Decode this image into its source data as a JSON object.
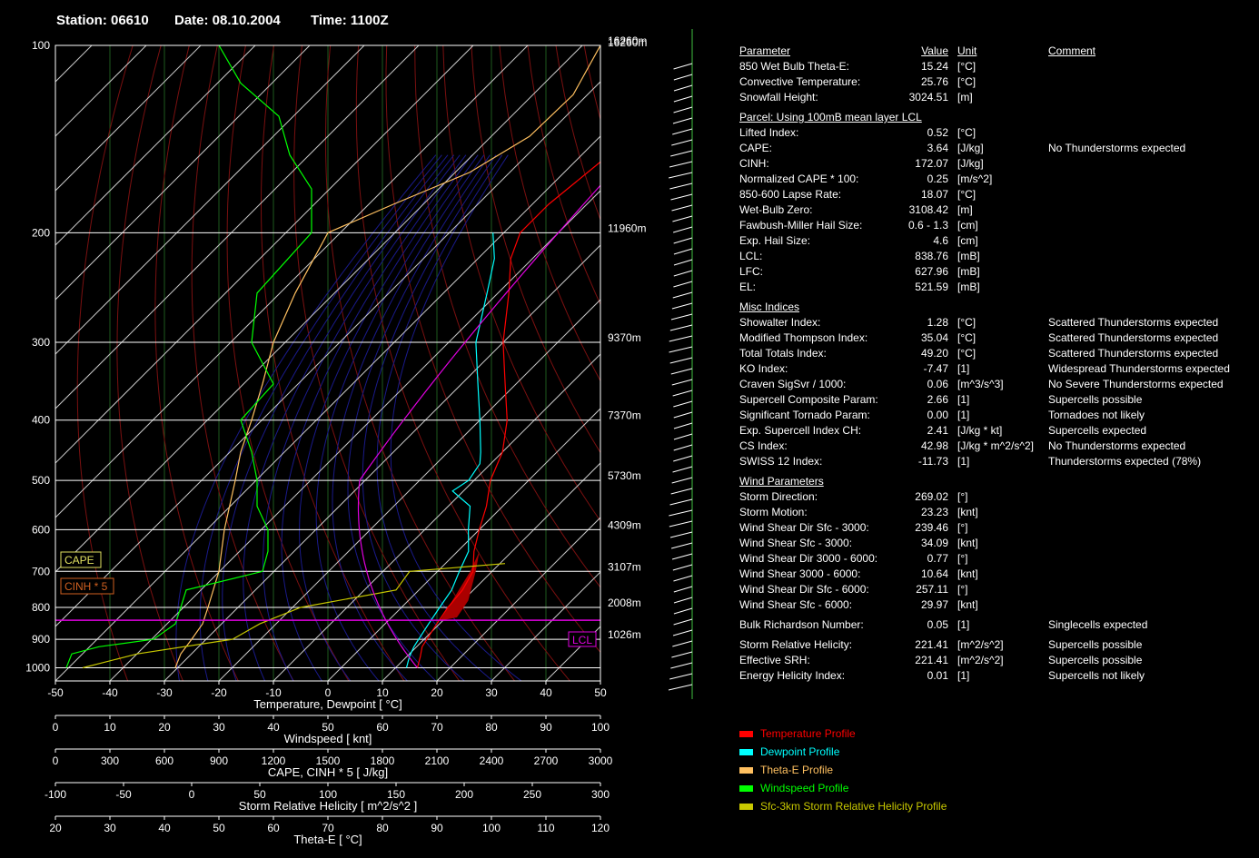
{
  "header": {
    "station": "Station: 06610",
    "date": "Date: 08.10.2004",
    "time": "Time: 1100Z"
  },
  "chart_data": {
    "type": "skew-t",
    "xlabel": "Temperature, Dewpoint  [ °C]",
    "x_ticks": [
      "-50",
      "-40",
      "-30",
      "-20",
      "-10",
      "0",
      "10",
      "20",
      "30",
      "40",
      "50"
    ],
    "y_ticks": [
      "100",
      "200",
      "300",
      "400",
      "500",
      "600",
      "700",
      "800",
      "900",
      "1000"
    ],
    "heights": [
      {
        "p": 100,
        "label": "16260m"
      },
      {
        "p": 200,
        "label": "11960m"
      },
      {
        "p": 300,
        "label": "9370m"
      },
      {
        "p": 400,
        "label": "7370m"
      },
      {
        "p": 500,
        "label": "5730m"
      },
      {
        "p": 600,
        "label": "4309m"
      },
      {
        "p": 700,
        "label": "3107m"
      },
      {
        "p": 800,
        "label": "2008m"
      },
      {
        "p": 900,
        "label": "1026m"
      }
    ],
    "lcl_label": "LCL",
    "cape_label": "CAPE",
    "cinh_label": "CINH * 5",
    "series": [
      {
        "name": "Temperature Profile",
        "color": "#ff0000",
        "points": [
          [
            1000,
            14
          ],
          [
            960,
            12.5
          ],
          [
            925,
            11
          ],
          [
            900,
            10.5
          ],
          [
            850,
            9.5
          ],
          [
            800,
            8.5
          ],
          [
            750,
            8
          ],
          [
            700,
            6.5
          ],
          [
            650,
            3
          ],
          [
            600,
            0
          ],
          [
            550,
            -3
          ],
          [
            500,
            -7
          ],
          [
            450,
            -10
          ],
          [
            400,
            -15
          ],
          [
            350,
            -22
          ],
          [
            300,
            -30
          ],
          [
            250,
            -38
          ],
          [
            220,
            -44
          ],
          [
            200,
            -47
          ],
          [
            180,
            -47
          ],
          [
            150,
            -45
          ],
          [
            130,
            -43
          ],
          [
            110,
            -41
          ],
          [
            100,
            -40
          ]
        ]
      },
      {
        "name": "Dewpoint Profile",
        "color": "#00ffff",
        "points": [
          [
            1000,
            12
          ],
          [
            960,
            10.5
          ],
          [
            925,
            9.5
          ],
          [
            900,
            9
          ],
          [
            850,
            8
          ],
          [
            800,
            7
          ],
          [
            750,
            6
          ],
          [
            700,
            4
          ],
          [
            650,
            2
          ],
          [
            600,
            -2
          ],
          [
            550,
            -6
          ],
          [
            520,
            -12
          ],
          [
            500,
            -11
          ],
          [
            470,
            -12
          ],
          [
            450,
            -14
          ],
          [
            400,
            -20
          ],
          [
            350,
            -27
          ],
          [
            300,
            -35
          ],
          [
            250,
            -42
          ],
          [
            220,
            -47
          ],
          [
            200,
            -52
          ]
        ]
      },
      {
        "name": "Theta-E Profile",
        "color": "#ffc060",
        "points": [
          [
            1000,
            42
          ],
          [
            950,
            43
          ],
          [
            900,
            45
          ],
          [
            850,
            47
          ],
          [
            800,
            48
          ],
          [
            700,
            50
          ],
          [
            600,
            51
          ],
          [
            500,
            53
          ],
          [
            450,
            54
          ],
          [
            400,
            56
          ],
          [
            350,
            58
          ],
          [
            300,
            60
          ],
          [
            250,
            64
          ],
          [
            200,
            70
          ],
          [
            180,
            82
          ],
          [
            160,
            96
          ],
          [
            140,
            107
          ],
          [
            120,
            115
          ],
          [
            100,
            120
          ]
        ]
      },
      {
        "name": "Windspeed Profile",
        "color": "#00ff00",
        "points": [
          [
            1000,
            2
          ],
          [
            950,
            3
          ],
          [
            925,
            8
          ],
          [
            900,
            18
          ],
          [
            850,
            22
          ],
          [
            800,
            23
          ],
          [
            750,
            24
          ],
          [
            700,
            38
          ],
          [
            650,
            39
          ],
          [
            600,
            39
          ],
          [
            550,
            37
          ],
          [
            500,
            37
          ],
          [
            450,
            36
          ],
          [
            400,
            34
          ],
          [
            350,
            40
          ],
          [
            300,
            36
          ],
          [
            250,
            37
          ],
          [
            200,
            47
          ],
          [
            170,
            47
          ],
          [
            150,
            43
          ],
          [
            130,
            41
          ],
          [
            115,
            34
          ],
          [
            100,
            30
          ]
        ]
      },
      {
        "name": "Sfc-3km Storm Relative Helicity Profile",
        "color": "#c8c800",
        "points": [
          [
            1000,
            -80
          ],
          [
            950,
            -40
          ],
          [
            900,
            30
          ],
          [
            850,
            50
          ],
          [
            800,
            80
          ],
          [
            750,
            150
          ],
          [
            700,
            160
          ],
          [
            680,
            230
          ]
        ]
      }
    ],
    "wind_barbs": "right column",
    "windspeed_axis": {
      "label": "Windspeed  [ knt]",
      "ticks": [
        "0",
        "10",
        "20",
        "30",
        "40",
        "50",
        "60",
        "70",
        "80",
        "90",
        "100"
      ]
    },
    "cape_axis": {
      "label": "CAPE, CINH * 5  [ J/kg]",
      "ticks": [
        "0",
        "300",
        "600",
        "900",
        "1200",
        "1500",
        "1800",
        "2100",
        "2400",
        "2700",
        "3000"
      ]
    },
    "srh_axis": {
      "label": "Storm Relative Helicity  [ m^2/s^2 ]",
      "ticks": [
        "-100",
        "-50",
        "0",
        "50",
        "100",
        "150",
        "200",
        "250",
        "300"
      ]
    },
    "thetae_axis": {
      "label": "Theta-E  [ °C]",
      "ticks": [
        "20",
        "30",
        "40",
        "50",
        "60",
        "70",
        "80",
        "90",
        "100",
        "110",
        "120"
      ]
    }
  },
  "table": {
    "headers": {
      "param": "Parameter",
      "value": "Value",
      "unit": "Unit",
      "comment": "Comment"
    },
    "groups": [
      {
        "title": "",
        "rows": [
          [
            "850 Wet Bulb Theta-E:",
            "15.24",
            "[°C]",
            ""
          ],
          [
            "Convective Temperature:",
            "25.76",
            "[°C]",
            ""
          ],
          [
            "Snowfall Height:",
            "3024.51",
            "[m]",
            ""
          ]
        ]
      },
      {
        "title": "Parcel: Using 100mB mean layer LCL",
        "rows": [
          [
            "Lifted Index:",
            "0.52",
            "[°C]",
            ""
          ],
          [
            "CAPE:",
            "3.64",
            "[J/kg]",
            "No Thunderstorms expected"
          ],
          [
            "CINH:",
            "172.07",
            "[J/kg]",
            ""
          ],
          [
            "Normalized CAPE * 100:",
            "0.25",
            "[m/s^2]",
            ""
          ],
          [
            "850-600 Lapse Rate:",
            "18.07",
            "[°C]",
            ""
          ],
          [
            "Wet-Bulb Zero:",
            "3108.42",
            "[m]",
            ""
          ],
          [
            "Fawbush-Miller Hail Size:",
            "0.6 - 1.3",
            "[cm]",
            ""
          ],
          [
            "Exp. Hail Size:",
            "4.6",
            "[cm]",
            ""
          ],
          [
            "LCL:",
            "838.76",
            "[mB]",
            ""
          ],
          [
            "LFC:",
            "627.96",
            "[mB]",
            ""
          ],
          [
            "EL:",
            "521.59",
            "[mB]",
            ""
          ]
        ]
      },
      {
        "title": "Misc Indices",
        "rows": [
          [
            "Showalter Index:",
            "1.28",
            "[°C]",
            "Scattered Thunderstorms expected"
          ],
          [
            "Modified Thompson Index:",
            "35.04",
            "[°C]",
            "Scattered Thunderstorms expected"
          ],
          [
            "Total Totals Index:",
            "49.20",
            "[°C]",
            "Scattered Thunderstorms expected"
          ],
          [
            "KO Index:",
            "-7.47",
            "[1]",
            "Widespread Thunderstorms expected"
          ],
          [
            "Craven SigSvr / 1000:",
            "0.06",
            "[m^3/s^3]",
            "No Severe Thunderstorms expected"
          ],
          [
            "Supercell Composite Param:",
            "2.66",
            "[1]",
            "Supercells possible"
          ],
          [
            "Significant Tornado Param:",
            "0.00",
            "[1]",
            "Tornadoes not likely"
          ],
          [
            "Exp. Supercell Index CH:",
            "2.41",
            "[J/kg * kt]",
            "Supercells expected"
          ],
          [
            "CS Index:",
            "42.98",
            "[J/kg * m^2/s^2]",
            "No Thunderstorms expected"
          ],
          [
            "SWISS 12 Index:",
            "-11.73",
            "[1]",
            "Thunderstorms expected (78%)"
          ]
        ]
      },
      {
        "title": "Wind Parameters",
        "rows": [
          [
            "Storm Direction:",
            "269.02",
            "[°]",
            ""
          ],
          [
            "Storm Motion:",
            "23.23",
            "[knt]",
            ""
          ],
          [
            "Wind Shear Dir Sfc - 3000:",
            "239.46",
            "[°]",
            ""
          ],
          [
            "Wind Shear Sfc - 3000:",
            "34.09",
            "[knt]",
            ""
          ],
          [
            "Wind Shear Dir 3000 - 6000:",
            "0.77",
            "[°]",
            ""
          ],
          [
            "Wind Shear 3000 - 6000:",
            "10.64",
            "[knt]",
            ""
          ],
          [
            "Wind Shear Dir Sfc - 6000:",
            "257.11",
            "[°]",
            ""
          ],
          [
            "Wind Shear Sfc - 6000:",
            "29.97",
            "[knt]",
            ""
          ]
        ]
      },
      {
        "title": "",
        "rows": [
          [
            "Bulk Richardson Number:",
            "0.05",
            "[1]",
            "Singlecells expected"
          ]
        ]
      },
      {
        "title": "",
        "rows": [
          [
            "Storm Relative Helicity:",
            "221.41",
            "[m^2/s^2]",
            "Supercells possible"
          ],
          [
            "Effective SRH:",
            "221.41",
            "[m^2/s^2]",
            "Supercells possible"
          ],
          [
            "Energy Helicity Index:",
            "0.01",
            "[1]",
            "Supercells not likely"
          ]
        ]
      }
    ]
  },
  "legend": [
    {
      "label": "Temperature Profile",
      "color": "#ff0000"
    },
    {
      "label": "Dewpoint Profile",
      "color": "#00ffff"
    },
    {
      "label": "Theta-E Profile",
      "color": "#ffc060"
    },
    {
      "label": "Windspeed Profile",
      "color": "#00ff00"
    },
    {
      "label": "Sfc-3km Storm Relative Helicity Profile",
      "color": "#c8c800"
    }
  ]
}
